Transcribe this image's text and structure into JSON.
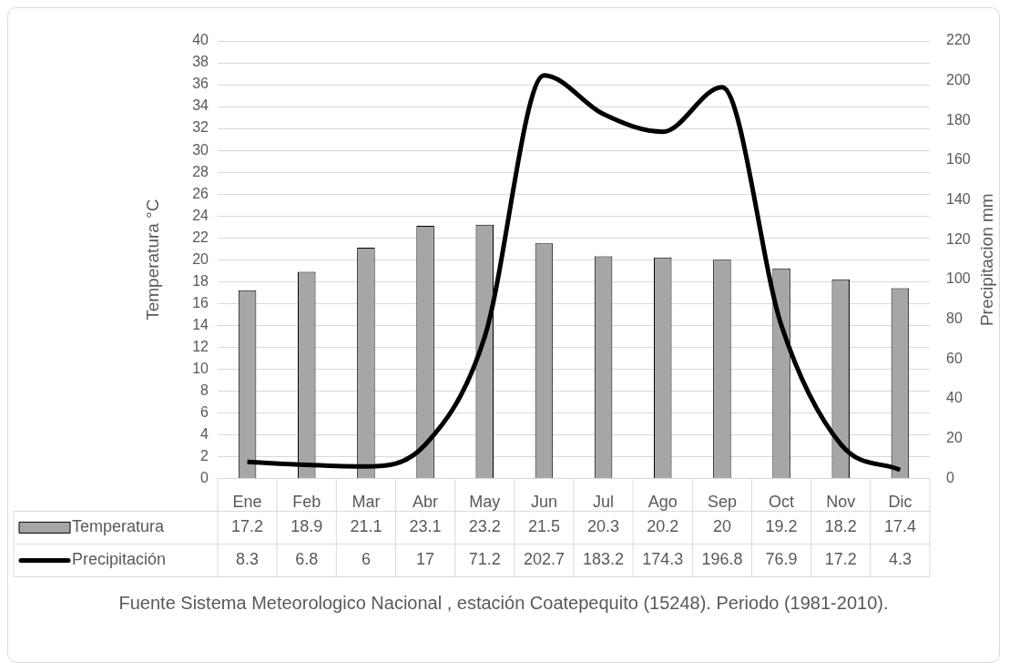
{
  "chart_data": {
    "type": "bar",
    "categories": [
      "Ene",
      "Feb",
      "Mar",
      "Abr",
      "May",
      "Jun",
      "Jul",
      "Ago",
      "Sep",
      "Oct",
      "Nov",
      "Dic"
    ],
    "series": [
      {
        "name": "Temperatura",
        "color": "#a6a6a6",
        "values": [
          17.2,
          18.9,
          21.1,
          23.1,
          23.2,
          21.5,
          20.3,
          20.2,
          20,
          19.2,
          18.2,
          17.4
        ]
      },
      {
        "name": "Precipitación",
        "type": "line",
        "axis": "y2",
        "color": "#000000",
        "values": [
          8.3,
          6.8,
          6,
          17,
          71.2,
          202.7,
          183.2,
          174.3,
          196.8,
          76.9,
          17.2,
          4.3
        ]
      }
    ],
    "ylabel": "Temperatura °C",
    "y2label": "Precipitacion mm",
    "ylim": [
      0,
      40
    ],
    "yticks": [
      0,
      2,
      4,
      6,
      8,
      10,
      12,
      14,
      16,
      18,
      20,
      22,
      24,
      26,
      28,
      30,
      32,
      34,
      36,
      38,
      40
    ],
    "y2lim": [
      0,
      220
    ],
    "y2ticks": [
      0,
      20,
      40,
      60,
      80,
      100,
      120,
      140,
      160,
      180,
      200,
      220
    ],
    "grid": "y",
    "legend": "bottom",
    "marker": "none",
    "data_labels": true,
    "annotations": [
      "Fuente Sistema Meteorologico Nacional , estación Coatepequito (15248). Periodo (1981-2010)."
    ]
  }
}
